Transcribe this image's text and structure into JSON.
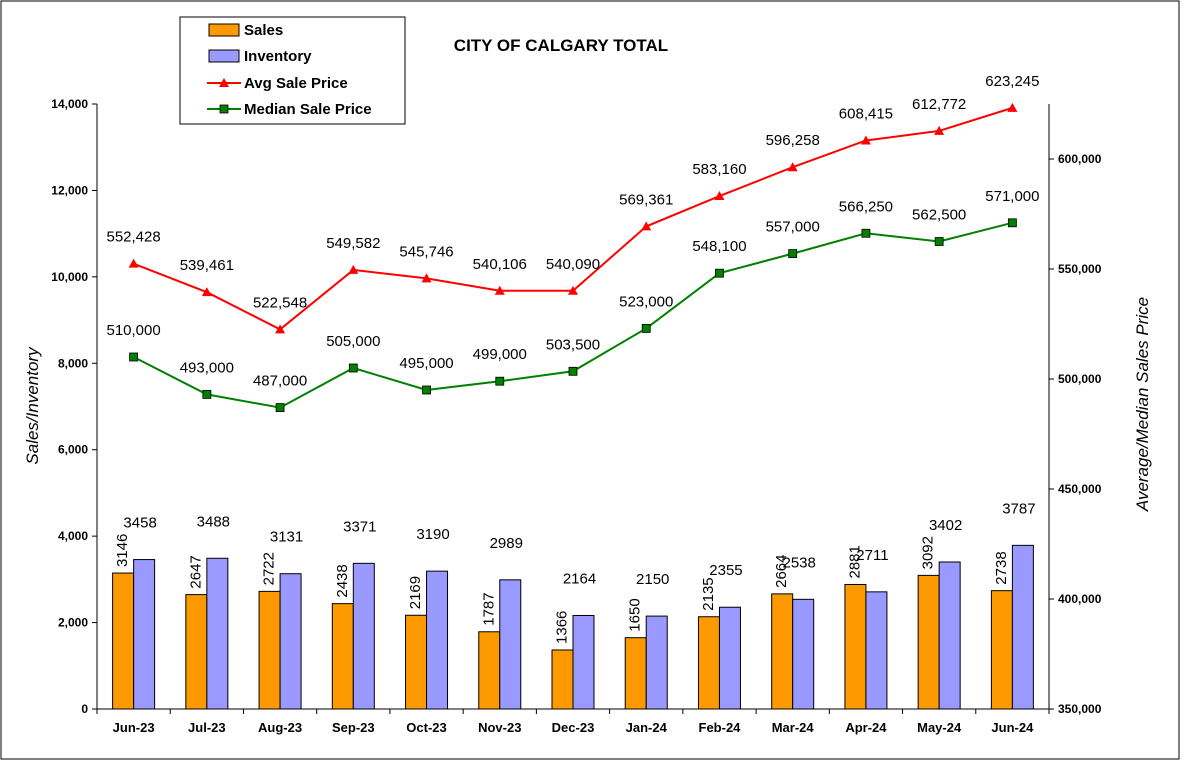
{
  "chart_data": {
    "type": "bar+line",
    "title": "CITY OF CALGARY TOTAL",
    "categories": [
      "Jun-23",
      "Jul-23",
      "Aug-23",
      "Sep-23",
      "Oct-23",
      "Nov-23",
      "Dec-23",
      "Jan-24",
      "Feb-24",
      "Mar-24",
      "Apr-24",
      "May-24",
      "Jun-24"
    ],
    "ylabel_left": "Sales/Inventory",
    "ylabel_right": "Average/Median Sales Price",
    "ylim_left": [
      0,
      14000
    ],
    "ylim_right": [
      350000,
      625000
    ],
    "yticks_left": [
      "0",
      "2,000",
      "4,000",
      "6,000",
      "8,000",
      "10,000",
      "12,000",
      "14,000"
    ],
    "yticks_left_values": [
      0,
      2000,
      4000,
      6000,
      8000,
      10000,
      12000,
      14000
    ],
    "yticks_right": [
      "350,000",
      "400,000",
      "450,000",
      "500,000",
      "550,000",
      "600,000"
    ],
    "yticks_right_values": [
      350000,
      400000,
      450000,
      500000,
      550000,
      600000
    ],
    "legend_position": "top-left",
    "grid": false,
    "series": [
      {
        "name": "Sales",
        "type": "bar",
        "axis": "left",
        "color": "#FF9900",
        "values": [
          3146,
          2647,
          2722,
          2438,
          2169,
          1787,
          1366,
          1650,
          2135,
          2664,
          2881,
          3092,
          2738
        ],
        "labels": [
          "3146",
          "2647",
          "2722",
          "2438",
          "2169",
          "1787",
          "1366",
          "1650",
          "2135",
          "2664",
          "2881",
          "3092",
          "2738"
        ]
      },
      {
        "name": "Inventory",
        "type": "bar",
        "axis": "left",
        "color": "#9999FF",
        "values": [
          3458,
          3488,
          3131,
          3371,
          3190,
          2989,
          2164,
          2150,
          2355,
          2538,
          2711,
          3402,
          3787
        ],
        "labels": [
          "3458",
          "3488",
          "3131",
          "3371",
          "3190",
          "2989",
          "2164",
          "2150",
          "2355",
          "2538",
          "2711",
          "3402",
          "3787"
        ]
      },
      {
        "name": "Avg Sale Price",
        "type": "line",
        "axis": "right",
        "color": "#FF0000",
        "marker": "triangle",
        "values": [
          552428,
          539461,
          522548,
          549582,
          545746,
          540106,
          540090,
          569361,
          583160,
          596258,
          608415,
          612772,
          623245
        ],
        "labels": [
          "552,428",
          "539,461",
          "522,548",
          "549,582",
          "545,746",
          "540,106",
          "540,090",
          "569,361",
          "583,160",
          "596,258",
          "608,415",
          "612,772",
          "623,245"
        ]
      },
      {
        "name": "Median Sale Price",
        "type": "line",
        "axis": "right",
        "color": "#008000",
        "marker": "square",
        "values": [
          510000,
          493000,
          487000,
          505000,
          495000,
          499000,
          503500,
          523000,
          548100,
          557000,
          566250,
          562500,
          571000
        ],
        "labels": [
          "510,000",
          "493,000",
          "487,000",
          "505,000",
          "495,000",
          "499,000",
          "503,500",
          "523,000",
          "548,100",
          "557,000",
          "566,250",
          "562,500",
          "571,000"
        ]
      }
    ]
  }
}
